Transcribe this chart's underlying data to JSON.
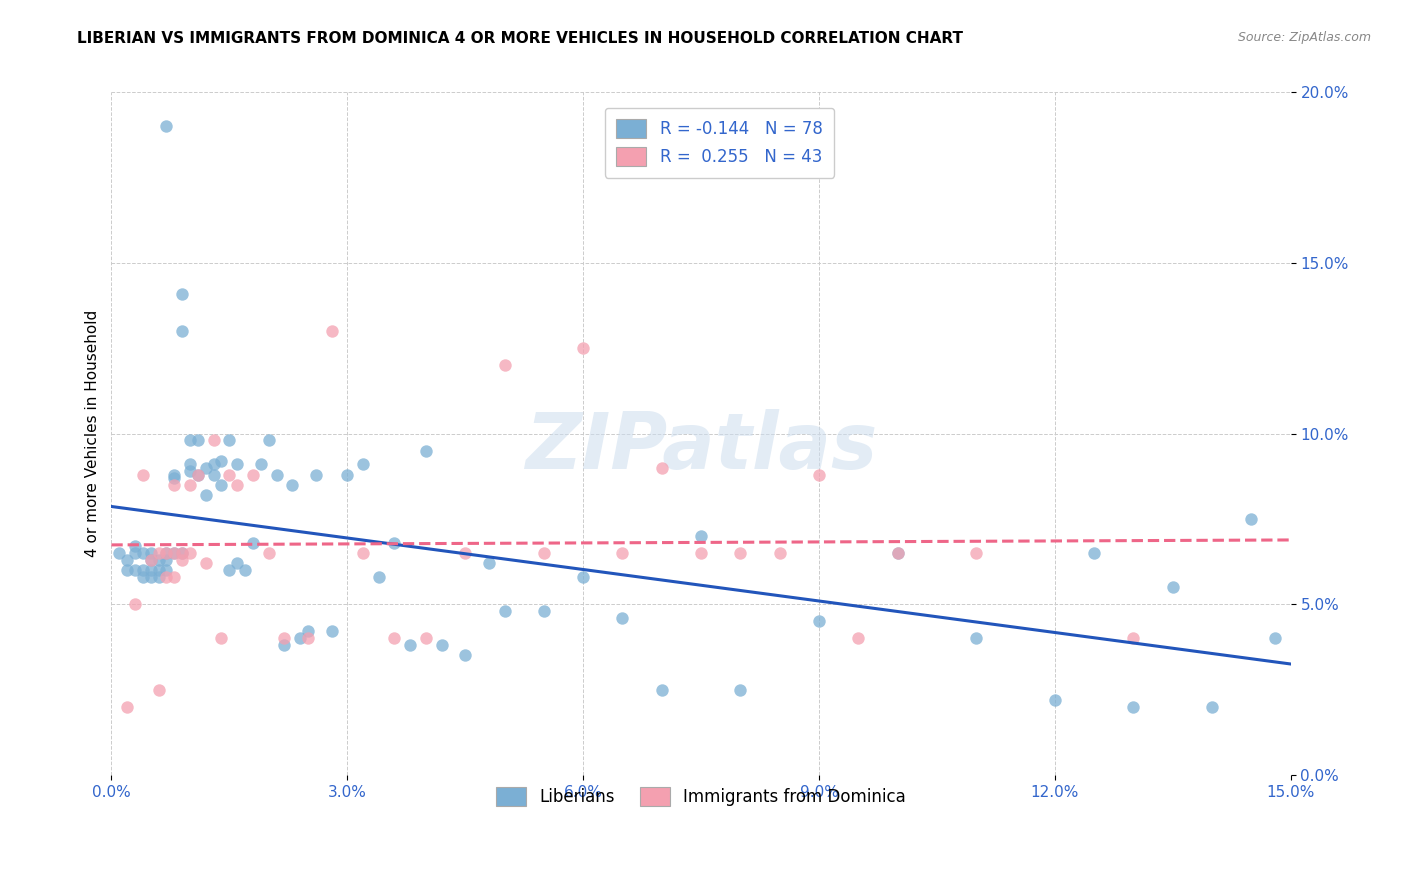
{
  "title": "LIBERIAN VS IMMIGRANTS FROM DOMINICA 4 OR MORE VEHICLES IN HOUSEHOLD CORRELATION CHART",
  "source": "Source: ZipAtlas.com",
  "ylabel": "4 or more Vehicles in Household",
  "xlim": [
    0.0,
    0.15
  ],
  "ylim": [
    0.0,
    0.2
  ],
  "xticks": [
    0.0,
    0.03,
    0.06,
    0.09,
    0.12,
    0.15
  ],
  "yticks": [
    0.0,
    0.05,
    0.1,
    0.15,
    0.2
  ],
  "xtick_labels": [
    "0.0%",
    "3.0%",
    "6.0%",
    "9.0%",
    "12.0%",
    "15.0%"
  ],
  "ytick_labels": [
    "0.0%",
    "5.0%",
    "10.0%",
    "15.0%",
    "20.0%"
  ],
  "liberian_R": -0.144,
  "liberian_N": 78,
  "dominica_R": 0.255,
  "dominica_N": 43,
  "blue_color": "#7BAFD4",
  "pink_color": "#F4A0B0",
  "trend_blue": "#2255BB",
  "trend_pink": "#EE6688",
  "legend_text_blue": "R = -0.144   N = 78",
  "legend_text_pink": "R =  0.255   N = 43",
  "watermark": "ZIPatlas",
  "lib_x": [
    0.001,
    0.002,
    0.002,
    0.003,
    0.003,
    0.003,
    0.004,
    0.004,
    0.004,
    0.005,
    0.005,
    0.005,
    0.005,
    0.006,
    0.006,
    0.006,
    0.007,
    0.007,
    0.007,
    0.007,
    0.008,
    0.008,
    0.008,
    0.009,
    0.009,
    0.009,
    0.01,
    0.01,
    0.01,
    0.011,
    0.011,
    0.012,
    0.012,
    0.013,
    0.013,
    0.014,
    0.014,
    0.015,
    0.015,
    0.016,
    0.017,
    0.018,
    0.019,
    0.02,
    0.021,
    0.022,
    0.023,
    0.024,
    0.025,
    0.026,
    0.028,
    0.03,
    0.032,
    0.034,
    0.036,
    0.038,
    0.04,
    0.042,
    0.045,
    0.048,
    0.05,
    0.055,
    0.06,
    0.065,
    0.07,
    0.075,
    0.08,
    0.09,
    0.1,
    0.11,
    0.12,
    0.125,
    0.13,
    0.135,
    0.14,
    0.145,
    0.148,
    0.016
  ],
  "lib_y": [
    0.065,
    0.063,
    0.06,
    0.067,
    0.065,
    0.06,
    0.065,
    0.06,
    0.058,
    0.063,
    0.065,
    0.06,
    0.058,
    0.063,
    0.06,
    0.058,
    0.065,
    0.063,
    0.06,
    0.19,
    0.088,
    0.087,
    0.065,
    0.141,
    0.13,
    0.065,
    0.091,
    0.089,
    0.098,
    0.088,
    0.098,
    0.09,
    0.082,
    0.091,
    0.088,
    0.092,
    0.085,
    0.098,
    0.06,
    0.091,
    0.06,
    0.068,
    0.091,
    0.098,
    0.088,
    0.038,
    0.085,
    0.04,
    0.042,
    0.088,
    0.042,
    0.088,
    0.091,
    0.058,
    0.068,
    0.038,
    0.095,
    0.038,
    0.035,
    0.062,
    0.048,
    0.048,
    0.058,
    0.046,
    0.025,
    0.07,
    0.025,
    0.045,
    0.065,
    0.04,
    0.022,
    0.065,
    0.02,
    0.055,
    0.02,
    0.075,
    0.04,
    0.062
  ],
  "dom_x": [
    0.002,
    0.003,
    0.004,
    0.005,
    0.006,
    0.006,
    0.007,
    0.007,
    0.008,
    0.008,
    0.008,
    0.009,
    0.009,
    0.01,
    0.01,
    0.011,
    0.012,
    0.013,
    0.014,
    0.015,
    0.016,
    0.018,
    0.02,
    0.022,
    0.025,
    0.028,
    0.032,
    0.036,
    0.04,
    0.045,
    0.05,
    0.055,
    0.06,
    0.065,
    0.07,
    0.075,
    0.08,
    0.085,
    0.09,
    0.095,
    0.1,
    0.11,
    0.13
  ],
  "dom_y": [
    0.02,
    0.05,
    0.088,
    0.063,
    0.065,
    0.025,
    0.065,
    0.058,
    0.065,
    0.058,
    0.085,
    0.065,
    0.063,
    0.065,
    0.085,
    0.088,
    0.062,
    0.098,
    0.04,
    0.088,
    0.085,
    0.088,
    0.065,
    0.04,
    0.04,
    0.13,
    0.065,
    0.04,
    0.04,
    0.065,
    0.12,
    0.065,
    0.125,
    0.065,
    0.09,
    0.065,
    0.065,
    0.065,
    0.088,
    0.04,
    0.065,
    0.065,
    0.04
  ]
}
